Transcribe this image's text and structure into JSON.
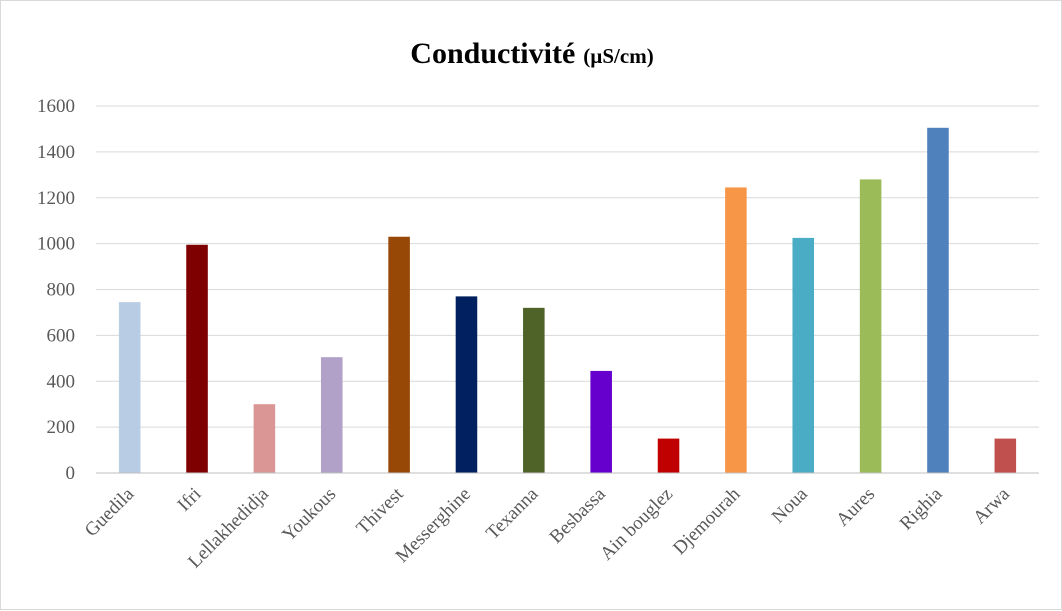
{
  "chart_data": {
    "type": "bar",
    "title": "Conductivité",
    "title_unit": "(µS/cm)",
    "xlabel": "",
    "ylabel": "",
    "ylim": [
      0,
      1600
    ],
    "yticks": [
      0,
      200,
      400,
      600,
      800,
      1000,
      1200,
      1400,
      1600
    ],
    "grid": true,
    "legend": "none",
    "categories": [
      "Guedila",
      "Ifri",
      "Lellakhedidja",
      "Youkous",
      "Thivest",
      "Messerghine",
      "Texanna",
      "Besbassa",
      "Ain bouglez",
      "Djemourah",
      "Noua",
      "Aures",
      "Righia",
      "Arwa"
    ],
    "values": [
      745,
      995,
      300,
      505,
      1030,
      770,
      720,
      445,
      150,
      1245,
      1025,
      1280,
      1505,
      150
    ],
    "colors": [
      "#b8cce4",
      "#7f0000",
      "#da9694",
      "#b1a0c7",
      "#974706",
      "#002060",
      "#4f6228",
      "#6600cc",
      "#c00000",
      "#f79646",
      "#4bacc6",
      "#9bbb59",
      "#4f81bd",
      "#c0504d"
    ]
  }
}
